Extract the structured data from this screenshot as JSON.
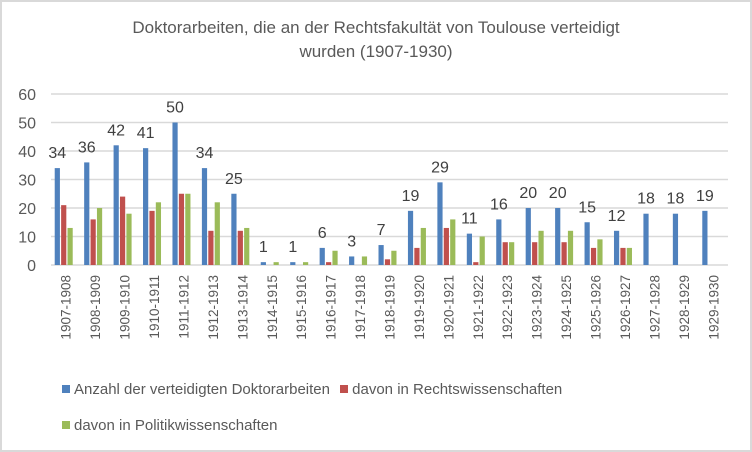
{
  "chart_data": {
    "type": "bar",
    "title": "Doktorarbeiten, die an der Rechtsfakultät von Toulouse verteidigt wurden (1907-1930)",
    "title_lines": [
      "Doktorarbeiten, die an der Rechtsfakultät von Toulouse verteidigt",
      "wurden (1907-1930)"
    ],
    "xlabel": "",
    "ylabel": "",
    "ylim": [
      0,
      60
    ],
    "yticks": [
      0,
      10,
      20,
      30,
      40,
      50,
      60
    ],
    "grid": true,
    "legend_position": "bottom",
    "categories": [
      "1907-1908",
      "1908-1909",
      "1909-1910",
      "1910-1911",
      "1911-1912",
      "1912-1913",
      "1913-1914",
      "1914-1915",
      "1915-1916",
      "1916-1917",
      "1917-1918",
      "1918-1919",
      "1919-1920",
      "1920-1921",
      "1921-1922",
      "1922-1923",
      "1923-1924",
      "1924-1925",
      "1925-1926",
      "1926-1927",
      "1927-1928",
      "1928-1929",
      "1929-1930"
    ],
    "series": [
      {
        "name": "Anzahl der verteidigten Doktorarbeiten",
        "color": "#4F81BD",
        "show_labels": true,
        "values": [
          34,
          36,
          42,
          41,
          50,
          34,
          25,
          1,
          1,
          6,
          3,
          7,
          19,
          29,
          11,
          16,
          20,
          20,
          15,
          12,
          18,
          18,
          19
        ]
      },
      {
        "name": "davon in Rechtswissenschaften",
        "color": "#C0504D",
        "show_labels": false,
        "values": [
          21,
          16,
          24,
          19,
          25,
          12,
          12,
          0,
          0,
          1,
          0,
          2,
          6,
          13,
          1,
          8,
          8,
          8,
          6,
          6,
          0,
          0,
          0
        ]
      },
      {
        "name": "davon in Politikwissenschaften",
        "color": "#9BBB59",
        "show_labels": false,
        "values": [
          13,
          20,
          18,
          22,
          25,
          22,
          13,
          1,
          1,
          5,
          3,
          5,
          13,
          16,
          10,
          8,
          12,
          12,
          9,
          6,
          0,
          0,
          0
        ]
      }
    ]
  },
  "colors": {
    "text": "#595959",
    "grid": "#d9d9d9",
    "border": "#d9d9d9"
  }
}
